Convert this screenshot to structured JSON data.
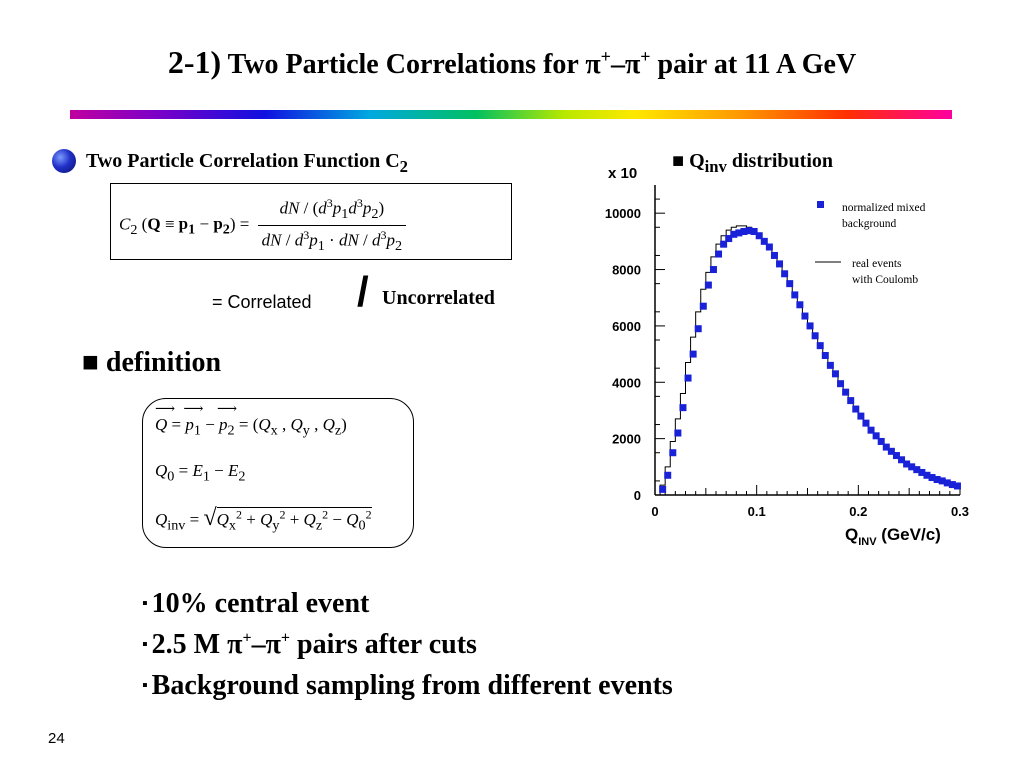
{
  "title": {
    "num": "2-1)",
    "text_a": "Two Particle Correlations for π",
    "sup_a": "+",
    "dash": "–π",
    "sup_b": "+",
    "text_b": " pair at 11 A GeV"
  },
  "correlation": {
    "heading": "Two Particle Correlation Function C",
    "heading_sub": "2",
    "eq_correlated": "= Correlated",
    "slash": "/",
    "uncorrelated": "Uncorrelated"
  },
  "definition": {
    "heading": "■ definition"
  },
  "chart_header": {
    "square": "■ Q",
    "sub": "inv",
    "rest": " distribution"
  },
  "list": [
    {
      "bullet": "▪",
      "text": "10% central event"
    },
    {
      "bullet": "▪",
      "text_a": "2.5 M π",
      "sup_a": "+",
      "dash": "–π",
      "sup_b": "+",
      "text_b": " pairs after cuts"
    },
    {
      "bullet": "▪",
      "text": "Background sampling from different events"
    }
  ],
  "page_number": "24",
  "chart_data": {
    "type": "scatter",
    "multiplier_label": "x 10",
    "xlabel_main": "Q",
    "xlabel_sub": "INV",
    "xlabel_unit": " (GeV/c)",
    "xlim": [
      0,
      0.3
    ],
    "ylim": [
      0,
      11000
    ],
    "x_ticks": [
      "0",
      "0.1",
      "0.2",
      "0.3"
    ],
    "y_ticks": [
      "0",
      "2000",
      "4000",
      "6000",
      "8000",
      "10000"
    ],
    "legend": [
      {
        "label_line1": "normalized mixed",
        "label_line2": "background",
        "marker": "square"
      },
      {
        "label_line1": "real events",
        "label_line2": "with Coulomb",
        "marker": "line"
      }
    ],
    "colors": {
      "mixed": "#1a22d8",
      "real": "#000000"
    },
    "series": [
      {
        "name": "normalized mixed background",
        "x": [
          0.0075,
          0.0125,
          0.0175,
          0.0225,
          0.0275,
          0.0325,
          0.0375,
          0.0425,
          0.0475,
          0.0525,
          0.0575,
          0.0625,
          0.0675,
          0.0725,
          0.0775,
          0.0825,
          0.0875,
          0.0925,
          0.0975,
          0.1025,
          0.1075,
          0.1125,
          0.1175,
          0.1225,
          0.1275,
          0.1325,
          0.1375,
          0.1425,
          0.1475,
          0.1525,
          0.1575,
          0.1625,
          0.1675,
          0.1725,
          0.1775,
          0.1825,
          0.1875,
          0.1925,
          0.1975,
          0.2025,
          0.2075,
          0.2125,
          0.2175,
          0.2225,
          0.2275,
          0.2325,
          0.2375,
          0.2425,
          0.2475,
          0.2525,
          0.2575,
          0.2625,
          0.2675,
          0.2725,
          0.2775,
          0.2825,
          0.2875,
          0.2925,
          0.2975
        ],
        "y": [
          200,
          700,
          1500,
          2200,
          3100,
          4150,
          5000,
          5900,
          6700,
          7450,
          8000,
          8550,
          8900,
          9100,
          9250,
          9300,
          9350,
          9380,
          9350,
          9200,
          9000,
          8800,
          8500,
          8200,
          7850,
          7500,
          7100,
          6750,
          6350,
          6000,
          5650,
          5300,
          4950,
          4600,
          4300,
          3950,
          3650,
          3350,
          3050,
          2800,
          2550,
          2300,
          2100,
          1900,
          1700,
          1550,
          1400,
          1250,
          1100,
          1000,
          900,
          800,
          700,
          620,
          550,
          500,
          430,
          370,
          320
        ]
      },
      {
        "name": "real events with Coulomb",
        "x": [
          0.0075,
          0.0125,
          0.0175,
          0.0225,
          0.0275,
          0.0325,
          0.0375,
          0.0425,
          0.0475,
          0.0525,
          0.0575,
          0.0625,
          0.0675,
          0.0725,
          0.0775,
          0.0825,
          0.0875,
          0.0925,
          0.0975,
          0.1025,
          0.1075,
          0.1125,
          0.1175,
          0.1225,
          0.1275,
          0.1325,
          0.1375,
          0.1425,
          0.1475,
          0.1525,
          0.1575,
          0.1625,
          0.1675,
          0.1725,
          0.1775,
          0.1825,
          0.1875,
          0.1925,
          0.1975,
          0.2025,
          0.2075,
          0.2125,
          0.2175,
          0.2225,
          0.2275,
          0.2325,
          0.2375,
          0.2425,
          0.2475,
          0.2525,
          0.2575,
          0.2625,
          0.2675,
          0.2725,
          0.2775,
          0.2825,
          0.2875,
          0.2925,
          0.2975
        ],
        "y": [
          350,
          1000,
          1900,
          2700,
          3600,
          4700,
          5600,
          6500,
          7300,
          7900,
          8450,
          8900,
          9200,
          9400,
          9500,
          9550,
          9550,
          9500,
          9400,
          9250,
          9050,
          8800,
          8500,
          8200,
          7850,
          7500,
          7100,
          6750,
          6350,
          6000,
          5650,
          5300,
          4950,
          4600,
          4300,
          3950,
          3650,
          3350,
          3050,
          2800,
          2550,
          2300,
          2100,
          1900,
          1700,
          1550,
          1400,
          1250,
          1100,
          1000,
          900,
          800,
          700,
          620,
          550,
          500,
          430,
          370,
          320
        ]
      }
    ]
  }
}
